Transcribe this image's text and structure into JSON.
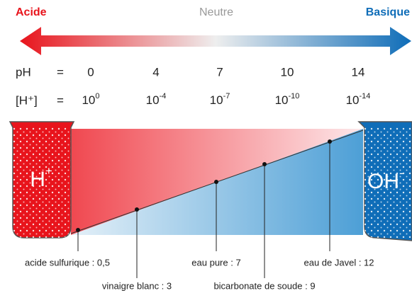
{
  "scale": {
    "acid": "Acide",
    "neutral": "Neutre",
    "basic": "Basique"
  },
  "ph_row": {
    "label": "pH",
    "equals": "=",
    "values": [
      "0",
      "4",
      "7",
      "10",
      "14"
    ]
  },
  "h_row": {
    "label": "[H⁺]",
    "equals": "=",
    "values": [
      {
        "base": "10",
        "exp": "0"
      },
      {
        "base": "10",
        "exp": "-4"
      },
      {
        "base": "10",
        "exp": "-7"
      },
      {
        "base": "10",
        "exp": "-10"
      },
      {
        "base": "10",
        "exp": "-14"
      }
    ]
  },
  "beakers": {
    "left": {
      "ion": "H",
      "charge": "+"
    },
    "right": {
      "ion": "OH",
      "charge": "-"
    }
  },
  "substances": [
    "acide sulfurique : 0,5",
    "vinaigre blanc : 3",
    "eau pure : 7",
    "bicarbonate de soude : 9",
    "eau de Javel : 12"
  ]
}
